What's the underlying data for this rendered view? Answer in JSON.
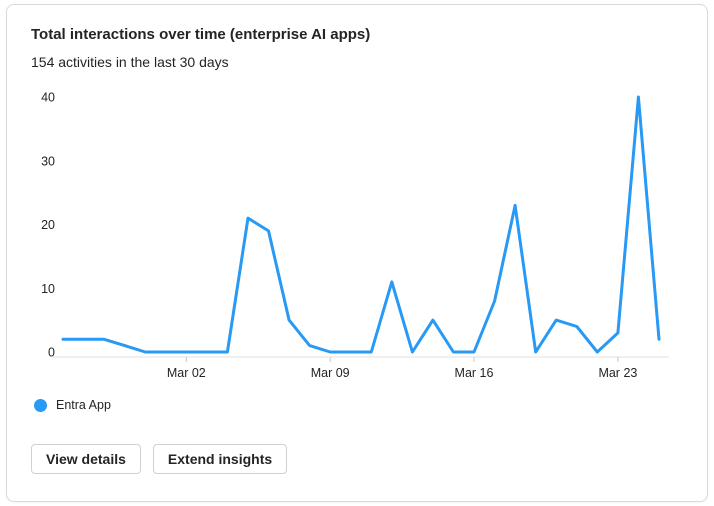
{
  "card": {
    "title": "Total interactions over time (enterprise AI apps)",
    "subtitle": "154 activities in the last 30 days"
  },
  "legend": {
    "series_label": "Entra App",
    "color": "#2899F5"
  },
  "buttons": {
    "view_details": "View details",
    "extend_insights": "Extend insights"
  },
  "chart_data": {
    "type": "line",
    "title": "Total interactions over time (enterprise AI apps)",
    "subtitle": "154 activities in the last 30 days",
    "x": [
      "Feb 24",
      "Feb 25",
      "Feb 26",
      "Feb 27",
      "Feb 28",
      "Mar 01",
      "Mar 02",
      "Mar 03",
      "Mar 04",
      "Mar 05",
      "Mar 06",
      "Mar 07",
      "Mar 08",
      "Mar 09",
      "Mar 10",
      "Mar 11",
      "Mar 12",
      "Mar 13",
      "Mar 14",
      "Mar 15",
      "Mar 16",
      "Mar 17",
      "Mar 18",
      "Mar 19",
      "Mar 20",
      "Mar 21",
      "Mar 22",
      "Mar 23",
      "Mar 24",
      "Mar 25"
    ],
    "series": [
      {
        "name": "Entra App",
        "color": "#2899F5",
        "values": [
          2,
          2,
          2,
          1,
          0,
          0,
          0,
          0,
          0,
          21,
          19,
          5,
          1,
          0,
          0,
          0,
          11,
          0,
          5,
          0,
          0,
          8,
          23,
          0,
          5,
          4,
          0,
          3,
          40,
          2
        ]
      }
    ],
    "total": 154,
    "x_tick_labels": [
      "Mar 02",
      "Mar 09",
      "Mar 16",
      "Mar 23"
    ],
    "x_tick_indices": [
      6,
      13,
      20,
      27
    ],
    "y_ticks": [
      0,
      10,
      20,
      30,
      40
    ],
    "ylim": [
      0,
      40
    ],
    "grid": false,
    "legend_position": "bottom-left"
  }
}
